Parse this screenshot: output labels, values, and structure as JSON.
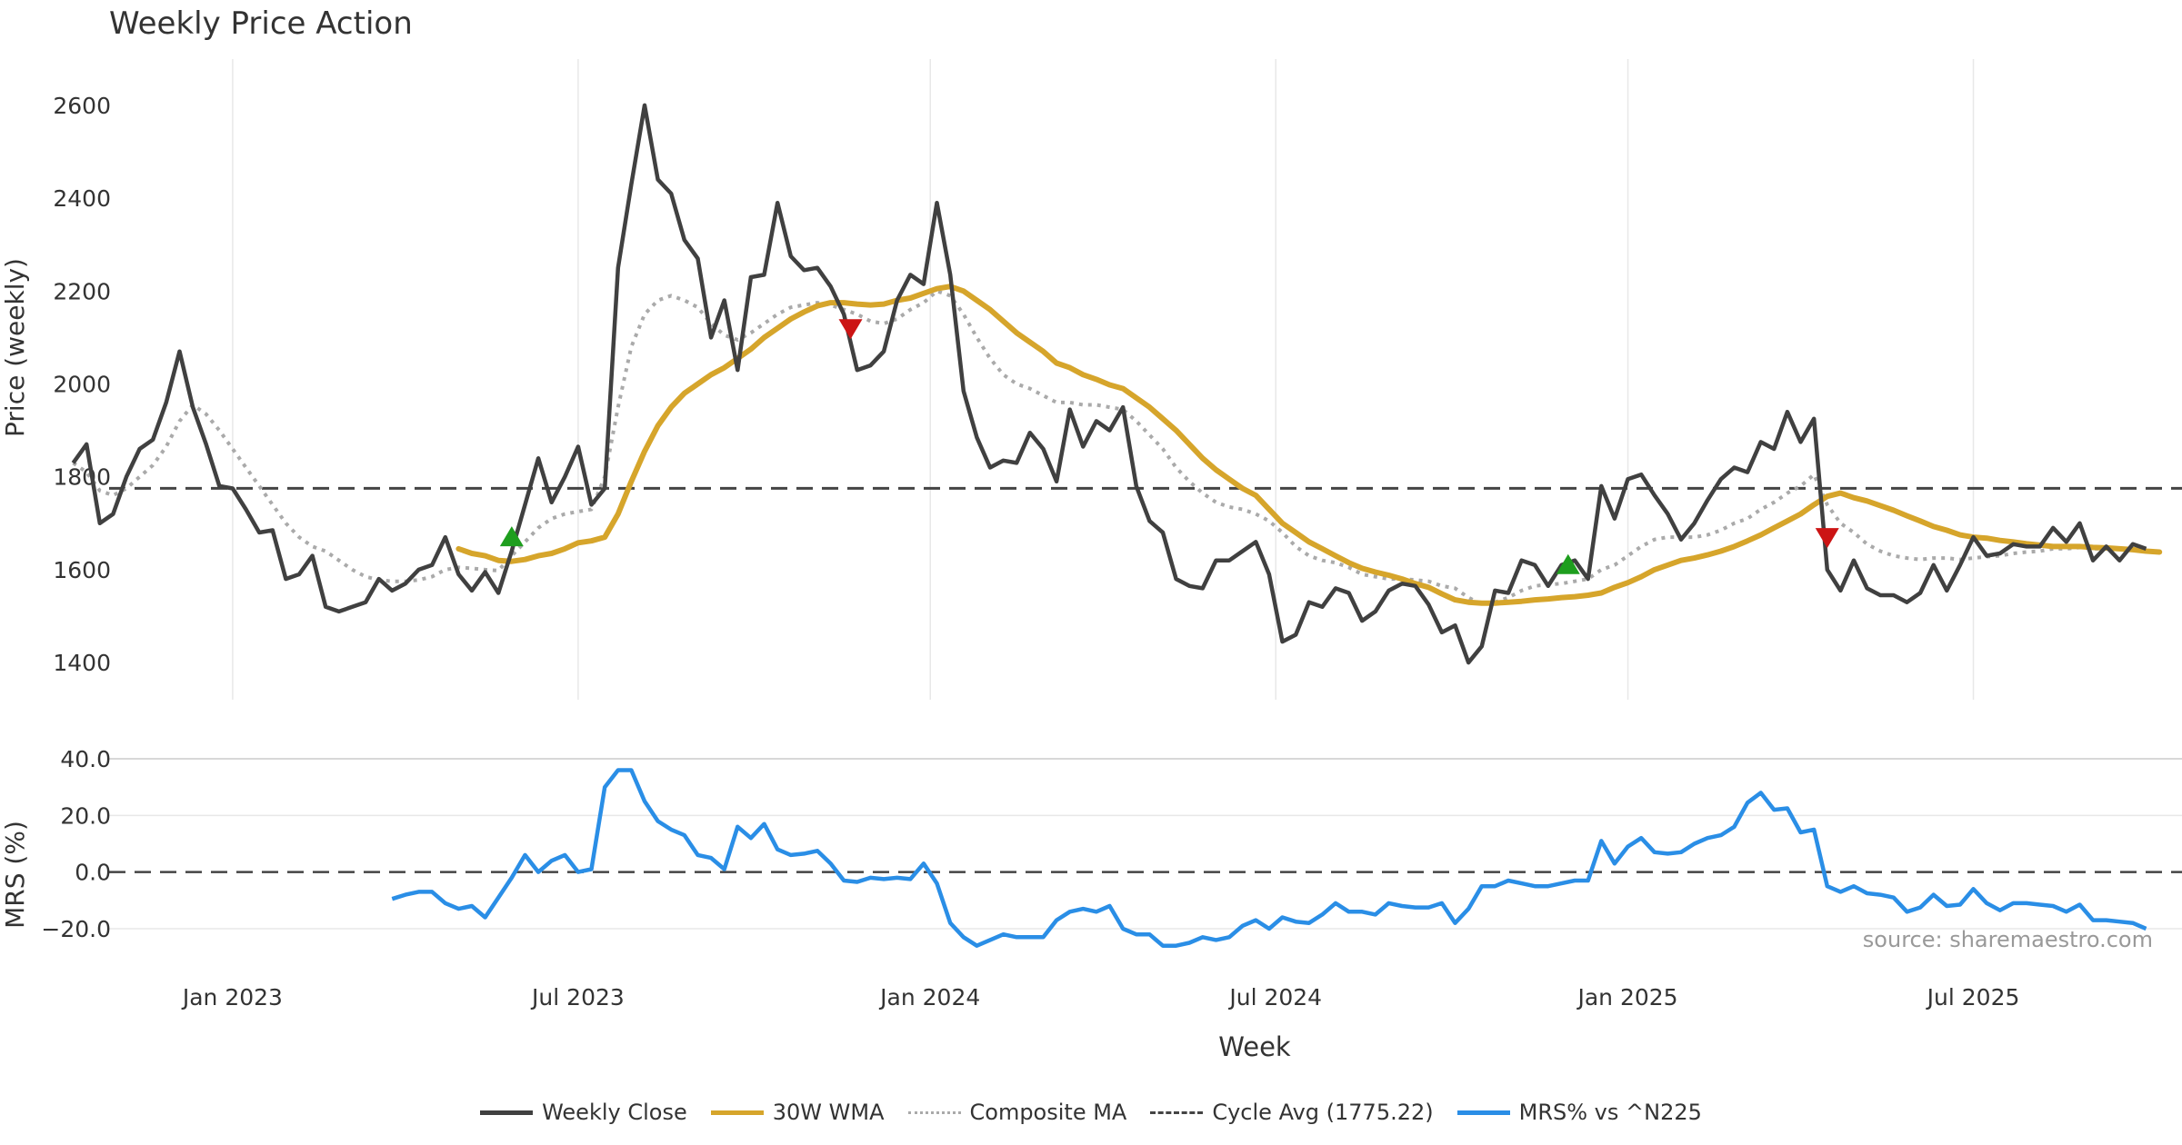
{
  "title": "Weekly Price Action",
  "source": "source: sharemaestro.com",
  "colors": {
    "close": "#404040",
    "wma": "#d6a52b",
    "composite": "#aaaaaa",
    "cycle": "#444444",
    "mrs": "#2a8ee6",
    "buy": "#1e9e1e",
    "sell": "#cc1414",
    "grid": "#e8e8e8"
  },
  "legend": [
    {
      "key": "close",
      "label": "Weekly Close",
      "style": "solid"
    },
    {
      "key": "wma",
      "label": "30W WMA",
      "style": "solid"
    },
    {
      "key": "composite",
      "label": "Composite MA",
      "style": "dotted"
    },
    {
      "key": "cycle",
      "label": "Cycle Avg (1775.22)",
      "style": "dashed"
    },
    {
      "key": "mrs",
      "label": "MRS% vs ^N225",
      "style": "solid"
    }
  ],
  "chart_data": {
    "type": "line",
    "xlabel": "Week",
    "x_ticks": [
      {
        "label": "Jan 2023",
        "week": 12
      },
      {
        "label": "Jul 2023",
        "week": 38
      },
      {
        "label": "Jan 2024",
        "week": 64.5
      },
      {
        "label": "Jul 2024",
        "week": 90.5
      },
      {
        "label": "Jan 2025",
        "week": 117
      },
      {
        "label": "Jul 2025",
        "week": 143
      }
    ],
    "x_range": [
      2.7,
      158.7
    ],
    "price_panel": {
      "ylabel": "Price (weekly)",
      "ylim": [
        1320,
        2680
      ],
      "yticks": [
        "1400",
        "1600",
        "1800",
        "2000",
        "2200",
        "2400",
        "2600"
      ],
      "cycle_avg": 1775.22,
      "series": {
        "close": [
          1830,
          1870,
          1700,
          1720,
          1800,
          1860,
          1880,
          1960,
          2070,
          1950,
          1870,
          1780,
          1775,
          1730,
          1680,
          1685,
          1580,
          1590,
          1630,
          1520,
          1510,
          1520,
          1530,
          1580,
          1555,
          1570,
          1600,
          1610,
          1670,
          1590,
          1555,
          1595,
          1550,
          1640,
          1740,
          1840,
          1745,
          1800,
          1865,
          1740,
          1775,
          2250,
          2430,
          2600,
          2440,
          2410,
          2310,
          2270,
          2100,
          2180,
          2030,
          2230,
          2235,
          2390,
          2275,
          2245,
          2250,
          2210,
          2150,
          2030,
          2040,
          2070,
          2180,
          2235,
          2215,
          2390,
          2235,
          1985,
          1885,
          1820,
          1835,
          1830,
          1895,
          1860,
          1790,
          1945,
          1865,
          1920,
          1900,
          1950,
          1780,
          1705,
          1680,
          1580,
          1565,
          1560,
          1620,
          1620,
          1640,
          1660,
          1590,
          1445,
          1460,
          1530,
          1520,
          1560,
          1550,
          1490,
          1510,
          1555,
          1570,
          1565,
          1525,
          1465,
          1480,
          1400,
          1435,
          1555,
          1550,
          1620,
          1610,
          1565,
          1610,
          1620,
          1580,
          1780,
          1710,
          1795,
          1805,
          1760,
          1720,
          1665,
          1700,
          1750,
          1795,
          1820,
          1810,
          1875,
          1860,
          1940,
          1875,
          1925,
          1600,
          1555,
          1620,
          1560,
          1545,
          1545,
          1530,
          1550,
          1610,
          1555,
          1610,
          1670,
          1630,
          1635,
          1655,
          1650,
          1650,
          1690,
          1660,
          1700,
          1620,
          1650,
          1620,
          1655,
          1645
        ],
        "wma": [
          {
            "start": 29,
            "values": [
              1645,
              1635,
              1630,
              1620,
              1618,
              1622,
              1630,
              1635,
              1645,
              1658,
              1662,
              1670,
              1720,
              1790,
              1855,
              1910,
              1950,
              1980,
              2000,
              2020,
              2035,
              2055,
              2075,
              2100,
              2120,
              2140,
              2155,
              2168,
              2175,
              2175,
              2172,
              2170,
              2172,
              2180,
              2185,
              2195,
              2205,
              2210,
              2200,
              2180,
              2160,
              2135,
              2110,
              2090,
              2070,
              2045,
              2035,
              2020,
              2010,
              1998,
              1990,
              1970,
              1950,
              1925,
              1900,
              1870,
              1840,
              1815,
              1795,
              1775,
              1760,
              1730,
              1700,
              1680,
              1660,
              1645,
              1630,
              1615,
              1603,
              1595,
              1588,
              1580,
              1570,
              1562,
              1548,
              1535,
              1530,
              1528,
              1528,
              1530,
              1532,
              1535,
              1537,
              1540,
              1542,
              1545,
              1550,
              1562,
              1572,
              1585,
              1600,
              1610,
              1620,
              1625,
              1632,
              1640,
              1650,
              1662,
              1675,
              1690,
              1705,
              1720,
              1740,
              1758,
              1765,
              1755,
              1748,
              1738,
              1728,
              1716,
              1705,
              1693,
              1685,
              1675,
              1670,
              1668,
              1663,
              1660,
              1656,
              1653,
              1650,
              1650,
              1650,
              1648,
              1647,
              1645,
              1643,
              1640,
              1638
            ]
          }
        ],
        "composite": [
          {
            "start": 0,
            "values": [
              1830,
              1810,
              1770,
              1760,
              1775,
              1800,
              1825,
              1865,
              1920,
              1955,
              1935,
              1900,
              1860,
              1820,
              1780,
              1740,
              1700,
              1670,
              1650,
              1640,
              1620,
              1600,
              1585,
              1578,
              1575,
              1575,
              1578,
              1585,
              1600,
              1605,
              1603,
              1600,
              1598,
              1630,
              1660,
              1690,
              1710,
              1720,
              1725,
              1730,
              1800,
              1950,
              2080,
              2150,
              2180,
              2190,
              2180,
              2165,
              2130,
              2105,
              2095,
              2110,
              2130,
              2150,
              2165,
              2170,
              2175,
              2170,
              2160,
              2150,
              2135,
              2130,
              2140,
              2160,
              2175,
              2200,
              2190,
              2150,
              2100,
              2055,
              2020,
              2000,
              1990,
              1975,
              1960,
              1960,
              1955,
              1955,
              1950,
              1945,
              1920,
              1890,
              1860,
              1820,
              1790,
              1765,
              1745,
              1735,
              1730,
              1720,
              1705,
              1680,
              1650,
              1630,
              1620,
              1615,
              1605,
              1590,
              1585,
              1580,
              1580,
              1578,
              1575,
              1565,
              1560,
              1540,
              1525,
              1530,
              1540,
              1555,
              1565,
              1568,
              1570,
              1575,
              1580,
              1600,
              1610,
              1630,
              1650,
              1665,
              1670,
              1670,
              1670,
              1675,
              1685,
              1700,
              1710,
              1730,
              1745,
              1765,
              1780,
              1805,
              1740,
              1700,
              1680,
              1655,
              1640,
              1630,
              1625,
              1622,
              1625,
              1625,
              1622,
              1625,
              1628,
              1630,
              1635,
              1638,
              1640,
              1645,
              1645,
              1648,
              1645,
              1645,
              1645,
              1645
            ]
          }
        ]
      },
      "signals": [
        {
          "type": "buy",
          "week": 33,
          "value": 1672
        },
        {
          "type": "sell",
          "week": 58.5,
          "value": 2118
        },
        {
          "type": "buy",
          "week": 112.5,
          "value": 1612
        },
        {
          "type": "sell",
          "week": 132,
          "value": 1668
        }
      ]
    },
    "mrs_panel": {
      "ylabel": "MRS (%)",
      "ylim": [
        -29,
        40
      ],
      "yticks": [
        "40.0",
        "20.0",
        "0.0",
        "−20.0"
      ],
      "series": {
        "start": 24,
        "values": [
          -9.5,
          -8,
          -7,
          -7,
          -11,
          -13,
          -12,
          -16,
          -9,
          -2,
          6,
          0,
          4,
          6,
          0,
          1,
          30,
          36,
          36,
          25,
          18,
          15,
          13,
          6,
          5,
          1,
          16,
          12,
          17,
          8,
          6,
          6.5,
          7.5,
          3,
          -3,
          -3.5,
          -2,
          -2.5,
          -2,
          -2.5,
          3,
          -4,
          -18,
          -23,
          -26,
          -24,
          -22,
          -23,
          -23,
          -23,
          -17,
          -14,
          -13,
          -14,
          -12,
          -20,
          -22,
          -22,
          -26,
          -26,
          -25,
          -23,
          -24,
          -23,
          -19,
          -17,
          -20,
          -16,
          -17.5,
          -18,
          -15,
          -11,
          -14,
          -14,
          -15,
          -11,
          -12,
          -12.5,
          -12.5,
          -11,
          -18,
          -13,
          -5,
          -5,
          -3,
          -4,
          -5,
          -5,
          -4,
          -3,
          -3,
          11,
          3,
          9,
          12,
          7,
          6.5,
          7,
          10,
          12,
          13,
          16,
          24.5,
          28,
          22,
          22.5,
          14,
          15,
          -5,
          -7,
          -5,
          -7.5,
          -8,
          -9,
          -14,
          -12.5,
          -8,
          -12,
          -11.5,
          -6,
          -11,
          -13.5,
          -11,
          -11,
          -11.5,
          -12,
          -14,
          -11.5,
          -17,
          -17,
          -17.5,
          -18,
          -20
        ]
      }
    }
  }
}
